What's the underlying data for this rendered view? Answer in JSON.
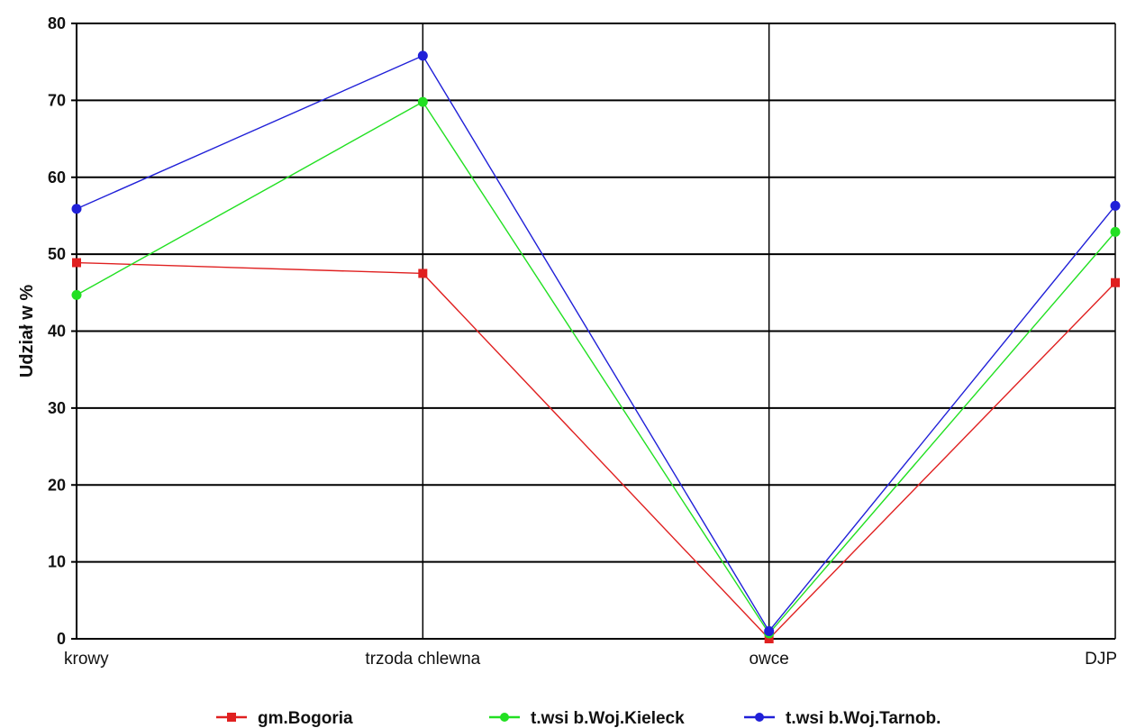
{
  "chart_data": {
    "type": "line",
    "categories": [
      "krowy",
      "trzoda chlewna",
      "owce",
      "DJP"
    ],
    "ylabel": "Udział w %",
    "ylim": [
      0,
      80
    ],
    "yticks": [
      0,
      10,
      20,
      30,
      40,
      50,
      60,
      70,
      80
    ],
    "grid": true,
    "legend_position": "bottom",
    "series": [
      {
        "name": "gm.Bogoria",
        "color": "#e02020",
        "values": [
          48.9,
          47.5,
          0.0,
          46.3
        ]
      },
      {
        "name": "t.wsi b.Woj.Kieleck",
        "color": "#22e022",
        "values": [
          44.7,
          69.8,
          0.7,
          52.9
        ]
      },
      {
        "name": "t.wsi b.Woj.Tarnob.",
        "color": "#2020d8",
        "values": [
          55.9,
          75.8,
          1.0,
          56.3
        ]
      }
    ]
  }
}
